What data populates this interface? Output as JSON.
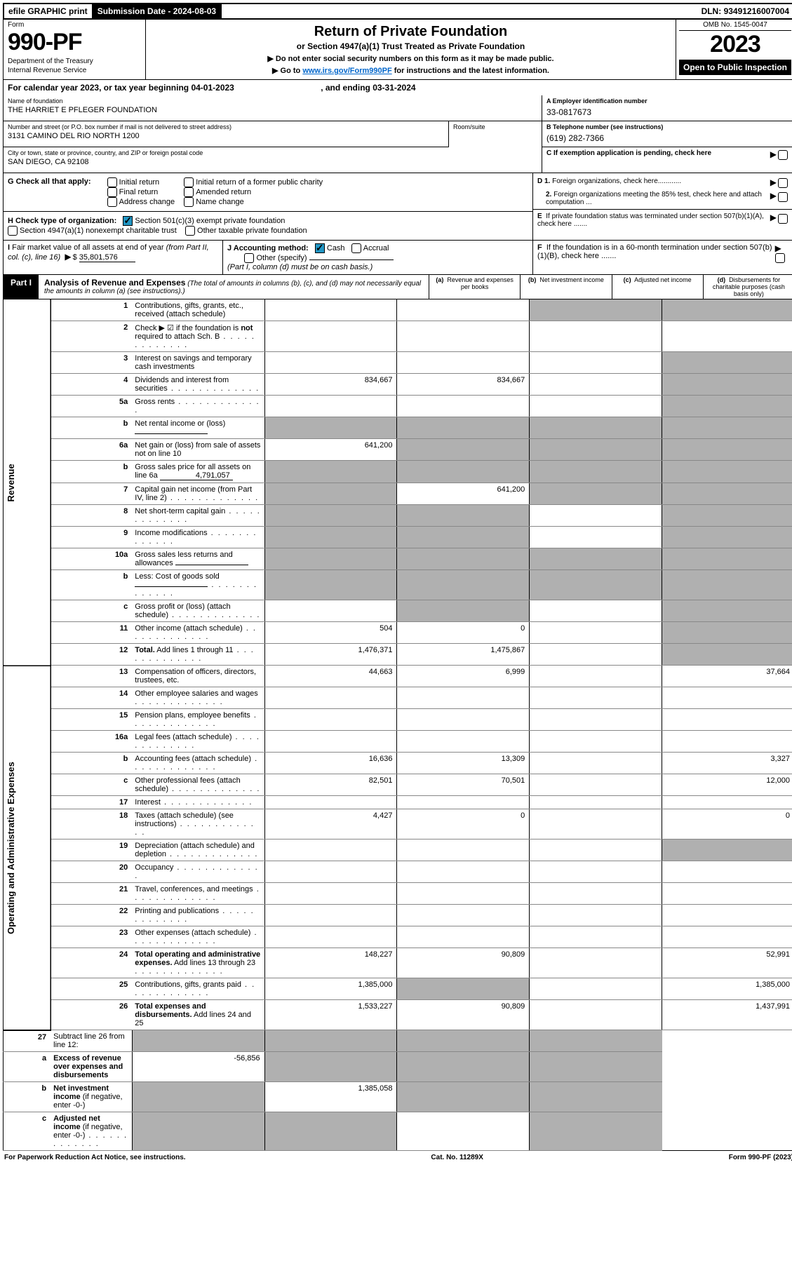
{
  "topbar": {
    "efile": "efile GRAPHIC print",
    "submission_label": "Submission Date - ",
    "submission_date": "2024-08-03",
    "dln_label": "DLN: ",
    "dln": "93491216007004"
  },
  "header": {
    "form_word": "Form",
    "form_number": "990-PF",
    "dept1": "Department of the Treasury",
    "dept2": "Internal Revenue Service",
    "title": "Return of Private Foundation",
    "subtitle": "or Section 4947(a)(1) Trust Treated as Private Foundation",
    "instr1": "▶ Do not enter social security numbers on this form as it may be made public.",
    "instr2": "▶ Go to ",
    "instr2_link": "www.irs.gov/Form990PF",
    "instr2_tail": " for instructions and the latest information.",
    "omb": "OMB No. 1545-0047",
    "year": "2023",
    "open_public": "Open to Public Inspection"
  },
  "cal_year": {
    "prefix": "For calendar year 2023, or tax year beginning ",
    "begin": "04-01-2023",
    "mid": " , and ending ",
    "end": "03-31-2024"
  },
  "info": {
    "name_lbl": "Name of foundation",
    "name_val": "THE HARRIET E PFLEGER FOUNDATION",
    "addr_lbl": "Number and street (or P.O. box number if mail is not delivered to street address)",
    "addr_val": "3131 CAMINO DEL RIO NORTH 1200",
    "room_lbl": "Room/suite",
    "room_val": "",
    "city_lbl": "City or town, state or province, country, and ZIP or foreign postal code",
    "city_val": "SAN DIEGO, CA  92108",
    "a_lbl": "A Employer identification number",
    "a_val": "33-0817673",
    "b_lbl": "B Telephone number (see instructions)",
    "b_val": "(619) 282-7366",
    "c_lbl": "C If exemption application is pending, check here"
  },
  "g": {
    "label": "G Check all that apply:",
    "opts": [
      "Initial return",
      "Final return",
      "Address change",
      "Initial return of a former public charity",
      "Amended return",
      "Name change"
    ]
  },
  "h": {
    "label": "H Check type of organization:",
    "opt1": "Section 501(c)(3) exempt private foundation",
    "opt2": "Section 4947(a)(1) nonexempt charitable trust",
    "opt3": "Other taxable private foundation"
  },
  "d": {
    "d1": "D 1. Foreign organizations, check here............",
    "d2": "2. Foreign organizations meeting the 85% test, check here and attach computation ...",
    "e": "E  If private foundation status was terminated under section 507(b)(1)(A), check here .......",
    "f": "F  If the foundation is in a 60-month termination under section 507(b)(1)(B), check here ......."
  },
  "i": {
    "label": "I Fair market value of all assets at end of year (from Part II, col. (c), line 16)",
    "arrow": "▶$",
    "val": "35,801,576"
  },
  "j": {
    "label": "J Accounting method:",
    "cash": "Cash",
    "accrual": "Accrual",
    "other": "Other (specify)",
    "note": "(Part I, column (d) must be on cash basis.)"
  },
  "part1": {
    "label": "Part I",
    "title": "Analysis of Revenue and Expenses",
    "note": "(The total of amounts in columns (b), (c), and (d) may not necessarily equal the amounts in column (a) (see instructions).)",
    "col_a": "(a)  Revenue and expenses per books",
    "col_b": "(b)  Net investment income",
    "col_c": "(c)  Adjusted net income",
    "col_d": "(d)  Disbursements for charitable purposes (cash basis only)"
  },
  "side": {
    "revenue": "Revenue",
    "expenses": "Operating and Administrative Expenses"
  },
  "rows": [
    {
      "n": "1",
      "d": "Contributions, gifts, grants, etc., received (attach schedule)",
      "a": "",
      "b": "",
      "c_s": true,
      "d_s": true
    },
    {
      "n": "2",
      "d": "Check ▶ ☑ if the foundation is <b>not</b> required to attach Sch. B",
      "dots": true,
      "nocols": true
    },
    {
      "n": "3",
      "d": "Interest on savings and temporary cash investments",
      "a": "",
      "b": "",
      "c": "",
      "d_s": true
    },
    {
      "n": "4",
      "d": "Dividends and interest from securities",
      "dots": true,
      "a": "834,667",
      "b": "834,667",
      "c": "",
      "d_s": true
    },
    {
      "n": "5a",
      "d": "Gross rents",
      "dots": true,
      "a": "",
      "b": "",
      "c": "",
      "d_s": true
    },
    {
      "n": "b",
      "d": "Net rental income or (loss)",
      "inline": "",
      "nocols": true,
      "d_s": true,
      "a_s": true,
      "b_s": true,
      "c_s": true
    },
    {
      "n": "6a",
      "d": "Net gain or (loss) from sale of assets not on line 10",
      "a": "641,200",
      "b_s": true,
      "c_s": true,
      "d_s": true
    },
    {
      "n": "b",
      "d": "Gross sales price for all assets on line 6a",
      "inline": "4,791,057",
      "a_s": true,
      "b_s": true,
      "c_s": true,
      "d_s": true
    },
    {
      "n": "7",
      "d": "Capital gain net income (from Part IV, line 2)",
      "dots": true,
      "a_s": true,
      "b": "641,200",
      "c_s": true,
      "d_s": true
    },
    {
      "n": "8",
      "d": "Net short-term capital gain",
      "dots": true,
      "a_s": true,
      "b_s": true,
      "c": "",
      "d_s": true
    },
    {
      "n": "9",
      "d": "Income modifications",
      "dots": true,
      "a_s": true,
      "b_s": true,
      "c": "",
      "d_s": true
    },
    {
      "n": "10a",
      "d": "Gross sales less returns and allowances",
      "inline": "",
      "a_s": true,
      "b_s": true,
      "c_s": true,
      "d_s": true
    },
    {
      "n": "b",
      "d": "Less: Cost of goods sold",
      "dots": true,
      "inline": "",
      "a_s": true,
      "b_s": true,
      "c_s": true,
      "d_s": true
    },
    {
      "n": "c",
      "d": "Gross profit or (loss) (attach schedule)",
      "dots": true,
      "a": "",
      "b_s": true,
      "c": "",
      "d_s": true
    },
    {
      "n": "11",
      "d": "Other income (attach schedule)",
      "dots": true,
      "a": "504",
      "b": "0",
      "c": "",
      "d_s": true
    },
    {
      "n": "12",
      "d": "<b>Total.</b> Add lines 1 through 11",
      "dots": true,
      "a": "1,476,371",
      "b": "1,475,867",
      "c": "",
      "d_s": true,
      "bold": true
    }
  ],
  "exp_rows": [
    {
      "n": "13",
      "d": "Compensation of officers, directors, trustees, etc.",
      "a": "44,663",
      "b": "6,999",
      "c": "",
      "dd": "37,664"
    },
    {
      "n": "14",
      "d": "Other employee salaries and wages",
      "dots": true,
      "a": "",
      "b": "",
      "c": "",
      "dd": ""
    },
    {
      "n": "15",
      "d": "Pension plans, employee benefits",
      "dots": true,
      "a": "",
      "b": "",
      "c": "",
      "dd": ""
    },
    {
      "n": "16a",
      "d": "Legal fees (attach schedule)",
      "dots": true,
      "a": "",
      "b": "",
      "c": "",
      "dd": ""
    },
    {
      "n": "b",
      "d": "Accounting fees (attach schedule)",
      "dots": true,
      "a": "16,636",
      "b": "13,309",
      "c": "",
      "dd": "3,327"
    },
    {
      "n": "c",
      "d": "Other professional fees (attach schedule)",
      "dots": true,
      "a": "82,501",
      "b": "70,501",
      "c": "",
      "dd": "12,000"
    },
    {
      "n": "17",
      "d": "Interest",
      "dots": true,
      "a": "",
      "b": "",
      "c": "",
      "dd": ""
    },
    {
      "n": "18",
      "d": "Taxes (attach schedule) (see instructions)",
      "dots": true,
      "a": "4,427",
      "b": "0",
      "c": "",
      "dd": "0"
    },
    {
      "n": "19",
      "d": "Depreciation (attach schedule) and depletion",
      "dots": true,
      "a": "",
      "b": "",
      "c": "",
      "d_s": true
    },
    {
      "n": "20",
      "d": "Occupancy",
      "dots": true,
      "a": "",
      "b": "",
      "c": "",
      "dd": ""
    },
    {
      "n": "21",
      "d": "Travel, conferences, and meetings",
      "dots": true,
      "a": "",
      "b": "",
      "c": "",
      "dd": ""
    },
    {
      "n": "22",
      "d": "Printing and publications",
      "dots": true,
      "a": "",
      "b": "",
      "c": "",
      "dd": ""
    },
    {
      "n": "23",
      "d": "Other expenses (attach schedule)",
      "dots": true,
      "a": "",
      "b": "",
      "c": "",
      "dd": ""
    },
    {
      "n": "24",
      "d": "<b>Total operating and administrative expenses.</b> Add lines 13 through 23",
      "dots": true,
      "a": "148,227",
      "b": "90,809",
      "c": "",
      "dd": "52,991"
    },
    {
      "n": "25",
      "d": "Contributions, gifts, grants paid",
      "dots": true,
      "a": "1,385,000",
      "b_s": true,
      "c": "",
      "dd": "1,385,000"
    },
    {
      "n": "26",
      "d": "<b>Total expenses and disbursements.</b> Add lines 24 and 25",
      "a": "1,533,227",
      "b": "90,809",
      "c": "",
      "dd": "1,437,991"
    }
  ],
  "final_rows": [
    {
      "n": "27",
      "d": "Subtract line 26 from line 12:",
      "a_s": true,
      "b_s": true,
      "c_s": true,
      "d_s": true
    },
    {
      "n": "a",
      "d": "<b>Excess of revenue over expenses and disbursements</b>",
      "a": "-56,856",
      "b_s": true,
      "c_s": true,
      "d_s": true
    },
    {
      "n": "b",
      "d": "<b>Net investment income</b> (if negative, enter -0-)",
      "a_s": true,
      "b": "1,385,058",
      "c_s": true,
      "d_s": true
    },
    {
      "n": "c",
      "d": "<b>Adjusted net income</b> (if negative, enter -0-)",
      "dots": true,
      "a_s": true,
      "b_s": true,
      "c": "",
      "d_s": true
    }
  ],
  "footer": {
    "left": "For Paperwork Reduction Act Notice, see instructions.",
    "mid": "Cat. No. 11289X",
    "right": "Form 990-PF (2023)"
  }
}
